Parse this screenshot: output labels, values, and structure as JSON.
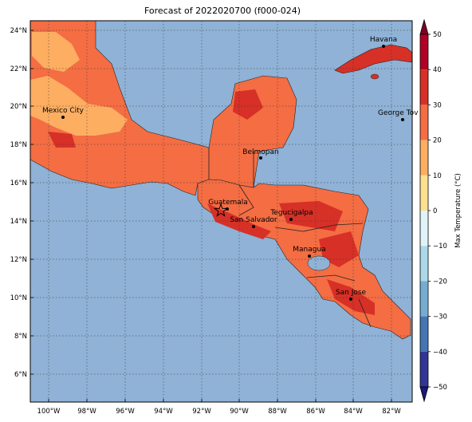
{
  "title": "Forecast of 2022020700 (f000-024)",
  "map": {
    "ocean_color": "#8fb2d6",
    "lat_labels": [
      "24°N",
      "22°N",
      "20°N",
      "18°N",
      "16°N",
      "14°N",
      "12°N",
      "10°N",
      "8°N",
      "6°N"
    ],
    "lon_labels": [
      "100°W",
      "98°W",
      "96°W",
      "94°W",
      "92°W",
      "90°W",
      "88°W",
      "86°W",
      "84°W",
      "82°W"
    ],
    "cities": [
      {
        "name": "Havana"
      },
      {
        "name": "Mexico City"
      },
      {
        "name": "George Tov"
      },
      {
        "name": "Belmopan"
      },
      {
        "name": "Guatemala"
      },
      {
        "name": "Tegucigalpa"
      },
      {
        "name": "San Salvador"
      },
      {
        "name": "Managua"
      },
      {
        "name": "San Jose"
      }
    ]
  },
  "colorbar": {
    "label": "Max Temperature (°C)",
    "ticks": [
      "50",
      "40",
      "30",
      "20",
      "10",
      "0",
      "−10",
      "−20",
      "−30",
      "−40",
      "−50"
    ],
    "colors": [
      "#7f0027",
      "#b10026",
      "#d73027",
      "#f46d43",
      "#fdae61",
      "#fee090",
      "#e0f3f8",
      "#abd9e9",
      "#74add1",
      "#4575b4",
      "#313695",
      "#1a1a7a"
    ]
  }
}
